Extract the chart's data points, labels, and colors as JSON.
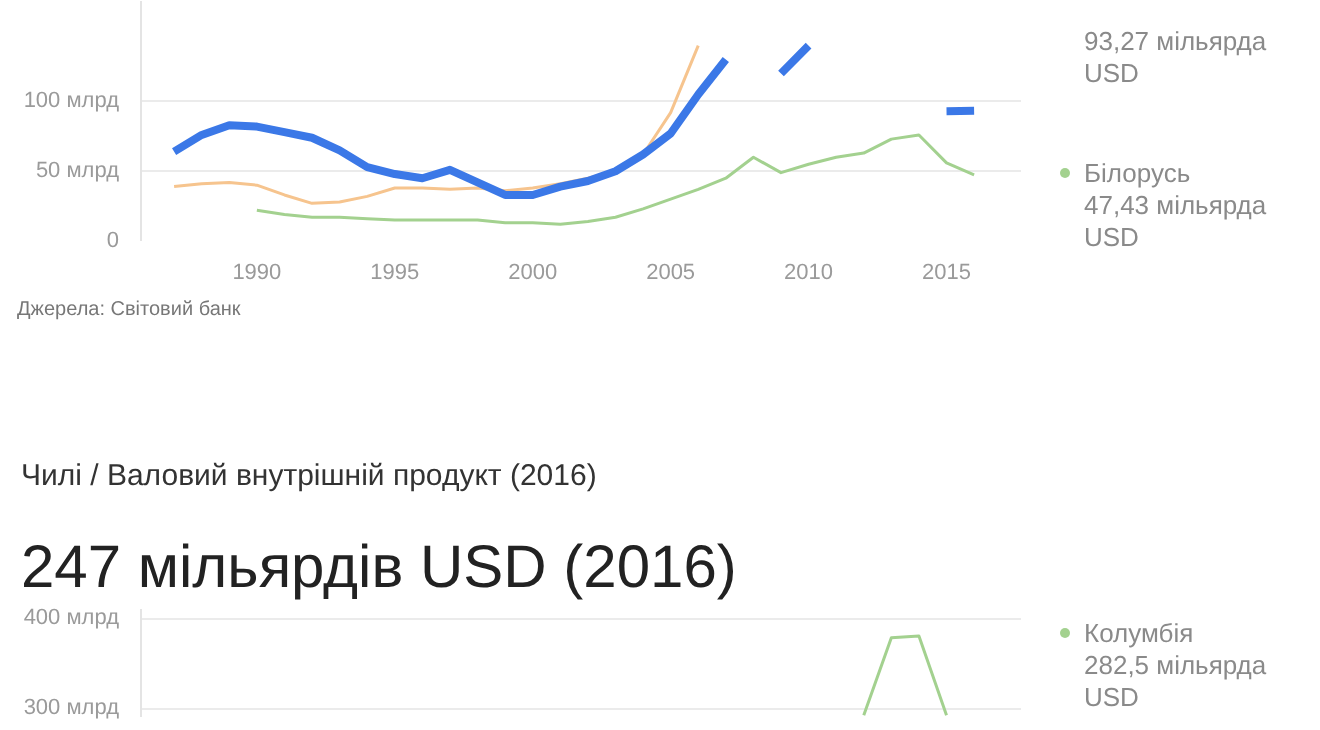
{
  "chart_data": [
    {
      "type": "line",
      "x": [
        1987,
        1988,
        1989,
        1990,
        1991,
        1992,
        1993,
        1994,
        1995,
        1996,
        1997,
        1998,
        1999,
        2000,
        2001,
        2002,
        2003,
        2004,
        2005,
        2006,
        2007,
        2008,
        2009,
        2010,
        2011,
        2012,
        2013,
        2014,
        2015,
        2016
      ],
      "series": [
        {
          "color": "#f6c48e",
          "values": [
            39,
            41,
            42,
            40,
            33,
            27,
            28,
            32,
            38,
            38,
            37,
            38,
            36,
            38,
            41,
            45,
            50,
            62,
            92,
            140,
            null,
            null,
            null,
            null,
            null,
            null,
            null,
            null,
            null,
            null
          ]
        },
        {
          "color": "#a3d18f",
          "name": "Білорусь",
          "values": [
            null,
            null,
            null,
            22,
            19,
            17,
            17,
            16,
            15,
            15,
            15,
            15,
            13,
            13,
            12,
            14,
            17,
            23,
            30,
            37,
            45,
            60,
            49,
            55,
            60,
            63,
            73,
            76,
            56,
            47.43
          ]
        },
        {
          "color": "#3b78e7",
          "values": [
            64,
            76,
            83,
            82,
            78,
            74,
            65,
            53,
            48,
            45,
            51,
            42,
            33,
            33,
            39,
            43,
            50,
            62,
            77,
            105,
            130,
            null,
            120,
            140,
            null,
            null,
            null,
            null,
            93,
            93.27
          ]
        }
      ],
      "xlim": [
        1985.8,
        2017.7
      ],
      "ylim": [
        0,
        172
      ],
      "xticks": [
        1990,
        1995,
        2000,
        2005,
        2010,
        2015
      ],
      "yticks": [
        {
          "value": 0,
          "label": "0"
        },
        {
          "value": 50,
          "label": "50 млрд"
        },
        {
          "value": 100,
          "label": "100 млрд"
        }
      ],
      "grid": "y",
      "annotations": [
        "93,27 мільярда USD",
        "47,43 мільярда USD",
        "Джерела: Світовий банк"
      ]
    },
    {
      "type": "line",
      "title": "Чилі / Валовий внутрішній продукт (2016)",
      "subtitle": "247 мільярдів USD (2016)",
      "x": [
        2012,
        2013,
        2014,
        2015
      ],
      "series": [
        {
          "color": "#a3d18f",
          "name": "Колумбія",
          "values": [
            292,
            378,
            380,
            292
          ]
        }
      ],
      "xlim": [
        1985.8,
        2017.7
      ],
      "ylim": [
        290,
        410
      ],
      "yticks": [
        {
          "value": 300,
          "label": "300 млрд"
        },
        {
          "value": 400,
          "label": "400 млрд"
        }
      ],
      "grid": "y",
      "tick_labels": "y",
      "annotations": [
        "282,5 мільярда USD"
      ]
    }
  ]
}
